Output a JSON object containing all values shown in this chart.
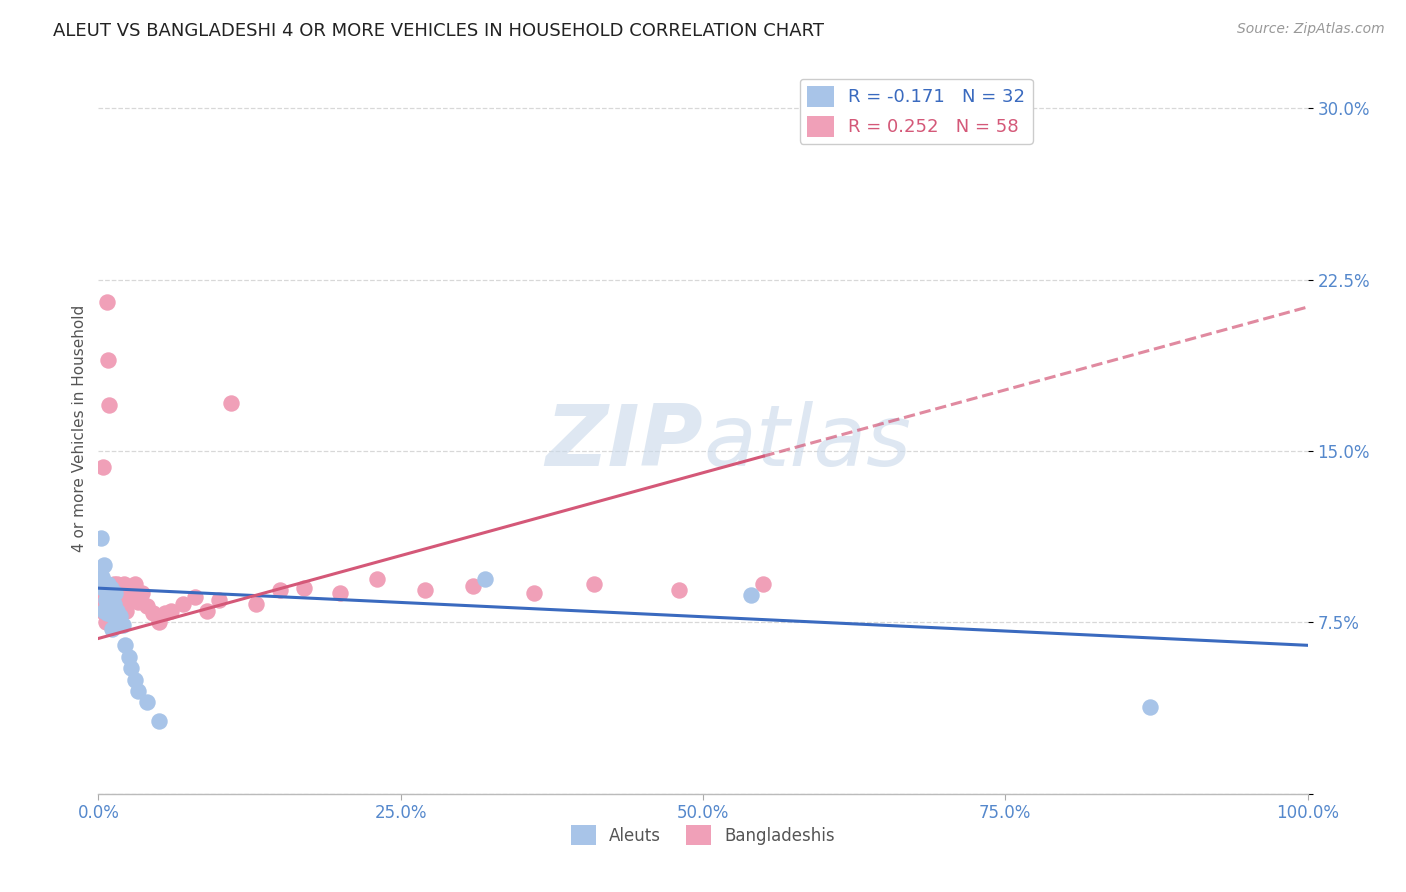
{
  "title": "ALEUT VS BANGLADESHI 4 OR MORE VEHICLES IN HOUSEHOLD CORRELATION CHART",
  "source": "Source: ZipAtlas.com",
  "ylabel": "4 or more Vehicles in Household",
  "xlim": [
    0.0,
    1.0
  ],
  "ylim": [
    0.0,
    0.32
  ],
  "xticks": [
    0.0,
    0.25,
    0.5,
    0.75,
    1.0
  ],
  "xtick_labels": [
    "0.0%",
    "25.0%",
    "50.0%",
    "75.0%",
    "100.0%"
  ],
  "yticks": [
    0.0,
    0.075,
    0.15,
    0.225,
    0.3
  ],
  "ytick_labels": [
    "",
    "7.5%",
    "15.0%",
    "22.5%",
    "30.0%"
  ],
  "legend_r_aleut": "-0.171",
  "legend_n_aleut": "32",
  "legend_r_bangladeshi": "0.252",
  "legend_n_bangladeshi": "58",
  "color_aleut": "#a8c4e8",
  "color_bangladeshi": "#f0a0b8",
  "color_aleut_line": "#3a6abf",
  "color_bangladeshi_line": "#d45878",
  "color_tick": "#5588cc",
  "watermark_color": "#c8d8ea",
  "background_color": "#ffffff",
  "grid_color": "#d8d8d8",
  "aleut_x": [
    0.002,
    0.003,
    0.004,
    0.005,
    0.005,
    0.006,
    0.007,
    0.007,
    0.008,
    0.008,
    0.009,
    0.009,
    0.01,
    0.011,
    0.011,
    0.012,
    0.013,
    0.014,
    0.015,
    0.016,
    0.018,
    0.02,
    0.022,
    0.025,
    0.027,
    0.03,
    0.033,
    0.04,
    0.05,
    0.32,
    0.54,
    0.87
  ],
  "aleut_y": [
    0.112,
    0.095,
    0.09,
    0.1,
    0.08,
    0.085,
    0.088,
    0.079,
    0.092,
    0.082,
    0.086,
    0.08,
    0.09,
    0.085,
    0.072,
    0.078,
    0.083,
    0.088,
    0.08,
    0.076,
    0.078,
    0.074,
    0.065,
    0.06,
    0.055,
    0.05,
    0.045,
    0.04,
    0.032,
    0.094,
    0.087,
    0.038
  ],
  "bangladeshi_x": [
    0.002,
    0.003,
    0.004,
    0.004,
    0.005,
    0.005,
    0.006,
    0.006,
    0.007,
    0.007,
    0.008,
    0.008,
    0.009,
    0.009,
    0.01,
    0.01,
    0.011,
    0.012,
    0.012,
    0.013,
    0.014,
    0.015,
    0.015,
    0.016,
    0.017,
    0.018,
    0.019,
    0.02,
    0.021,
    0.022,
    0.023,
    0.024,
    0.025,
    0.027,
    0.03,
    0.033,
    0.036,
    0.04,
    0.045,
    0.05,
    0.055,
    0.06,
    0.07,
    0.08,
    0.09,
    0.1,
    0.11,
    0.13,
    0.15,
    0.17,
    0.2,
    0.23,
    0.27,
    0.31,
    0.36,
    0.41,
    0.48,
    0.55
  ],
  "bangladeshi_y": [
    0.085,
    0.08,
    0.09,
    0.143,
    0.082,
    0.08,
    0.088,
    0.075,
    0.082,
    0.215,
    0.078,
    0.19,
    0.085,
    0.17,
    0.09,
    0.082,
    0.088,
    0.082,
    0.086,
    0.092,
    0.087,
    0.092,
    0.082,
    0.088,
    0.083,
    0.09,
    0.085,
    0.09,
    0.092,
    0.087,
    0.08,
    0.085,
    0.09,
    0.087,
    0.092,
    0.084,
    0.088,
    0.082,
    0.079,
    0.075,
    0.079,
    0.08,
    0.083,
    0.086,
    0.08,
    0.085,
    0.171,
    0.083,
    0.089,
    0.09,
    0.088,
    0.094,
    0.089,
    0.091,
    0.088,
    0.092,
    0.089,
    0.092
  ]
}
